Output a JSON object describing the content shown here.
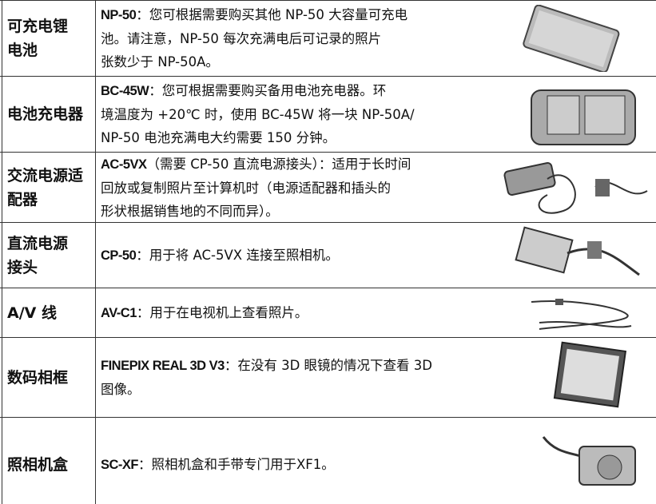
{
  "table": {
    "rows": [
      {
        "label": [
          "可充电锂",
          "电池"
        ],
        "code": "NP-50",
        "lines": [
          "：您可根据需要购买其他 NP-50 大容量可充电",
          "池。请注意，NP-50 每次充满电后可记录的照片",
          "张数少于 NP-50A。"
        ]
      },
      {
        "label": [
          "电池充电器"
        ],
        "code": "BC-45W",
        "lines": [
          "：您可根据需要购买备用电池充电器。环",
          "境温度为 +20℃ 时，使用 BC-45W 将一块 NP-50A/",
          "NP-50 电池充满电大约需要 150 分钟。"
        ]
      },
      {
        "label": [
          "交流电源适",
          "配器"
        ],
        "code": "AC-5VX",
        "lines": [
          "（需要 CP-50 直流电源接头）：适用于长时间",
          "回放或复制照片至计算机时（电源适配器和插头的",
          "形状根据销售地的不同而异）。"
        ]
      },
      {
        "label": [
          "直流电源",
          "接头"
        ],
        "code": "CP-50",
        "lines": [
          "：用于将 AC-5VX 连接至照相机。"
        ]
      },
      {
        "label": [
          "A/V 线"
        ],
        "code": "AV-C1",
        "lines": [
          "：用于在电视机上查看照片。"
        ]
      },
      {
        "label": [
          "数码相框"
        ],
        "code": "FINEPIX REAL 3D V3",
        "lines": [
          "：在没有 3D 眼镜的情况下查看 3D",
          "图像。"
        ]
      },
      {
        "label": [
          "照相机盒"
        ],
        "code": "SC-XF",
        "lines": [
          "：照相机盒和手带专门用于XF1。"
        ]
      }
    ]
  }
}
